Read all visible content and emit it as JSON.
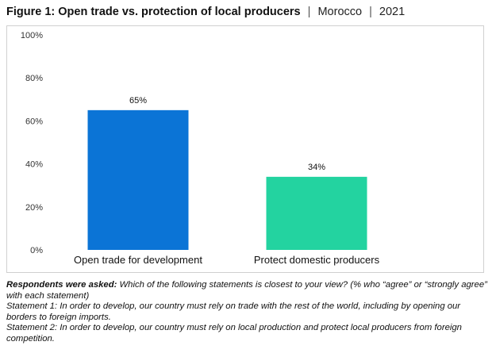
{
  "title": {
    "main": "Figure 1: Open trade vs. protection of local producers",
    "separator": "|",
    "country": "Morocco",
    "year": "2021"
  },
  "chart_data": {
    "type": "bar",
    "categories": [
      "Open trade for development",
      "Protect domestic producers"
    ],
    "values": [
      65,
      34
    ],
    "data_labels": [
      "65%",
      "34%"
    ],
    "colors": [
      "#0B74D6",
      "#23D3A0"
    ],
    "ylim": [
      0,
      100
    ],
    "yticks": [
      0,
      20,
      40,
      60,
      80,
      100
    ],
    "ytick_labels": [
      "0%",
      "20%",
      "40%",
      "60%",
      "80%",
      "100%"
    ],
    "grid": false,
    "legend": "none"
  },
  "notes": {
    "question_label": "Respondents were asked:",
    "question_text": " Which of the following statements is closest to your view? (% who “agree” or “strongly agree” with each statement)",
    "statement1": "Statement 1: In order to develop, our country must rely on trade with the rest of the world, including by opening our borders to foreign imports.",
    "statement2": "Statement 2: In order to develop, our country must rely on local production and protect local producers from foreign competition."
  }
}
